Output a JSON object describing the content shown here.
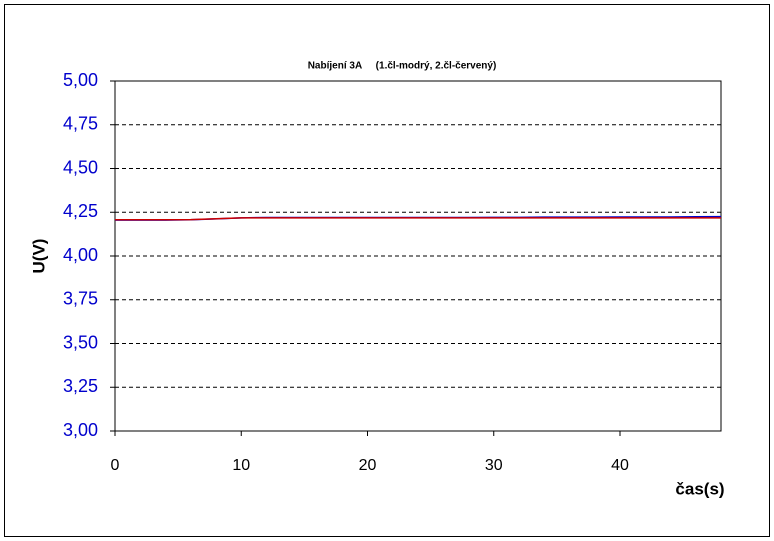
{
  "chart_data": {
    "type": "line",
    "title": "Nabíjení 3A     (1.čl-modrý, 2.čl-červený)",
    "x_label": "čas(s)",
    "y_label": "U(V)",
    "x": [
      0,
      2,
      4,
      6,
      8,
      10,
      12,
      14,
      16,
      18,
      20,
      22,
      24,
      26,
      28,
      30,
      32,
      34,
      36,
      38,
      40,
      42,
      44,
      46,
      48
    ],
    "series": [
      {
        "color": "#0000cc",
        "values": [
          4.205,
          4.205,
          4.205,
          4.207,
          4.212,
          4.218,
          4.22,
          4.22,
          4.22,
          4.22,
          4.22,
          4.22,
          4.22,
          4.22,
          4.22,
          4.221,
          4.221,
          4.222,
          4.222,
          4.222,
          4.223,
          4.223,
          4.223,
          4.224,
          4.225
        ]
      },
      {
        "color": "#cc0000",
        "values": [
          4.207,
          4.207,
          4.207,
          4.208,
          4.213,
          4.218,
          4.218,
          4.218,
          4.218,
          4.218,
          4.218,
          4.218,
          4.218,
          4.218,
          4.218,
          4.218,
          4.218,
          4.218,
          4.218,
          4.218,
          4.218,
          4.218,
          4.218,
          4.218,
          4.218
        ]
      }
    ],
    "xlim": [
      0,
      48
    ],
    "xticks": [
      0,
      10,
      20,
      30,
      40
    ],
    "ylim": [
      3,
      5
    ],
    "yticks": [
      {
        "value": 3,
        "label": "3,00"
      },
      {
        "value": 3.25,
        "label": "3,25"
      },
      {
        "value": 3.5,
        "label": "3,50"
      },
      {
        "value": 3.75,
        "label": "3,75"
      },
      {
        "value": 4,
        "label": "4,00"
      },
      {
        "value": 4.25,
        "label": "4,25"
      },
      {
        "value": 4.5,
        "label": "4,50"
      },
      {
        "value": 4.75,
        "label": "4,75"
      },
      {
        "value": 5,
        "label": "5,00"
      }
    ],
    "grid": true
  }
}
